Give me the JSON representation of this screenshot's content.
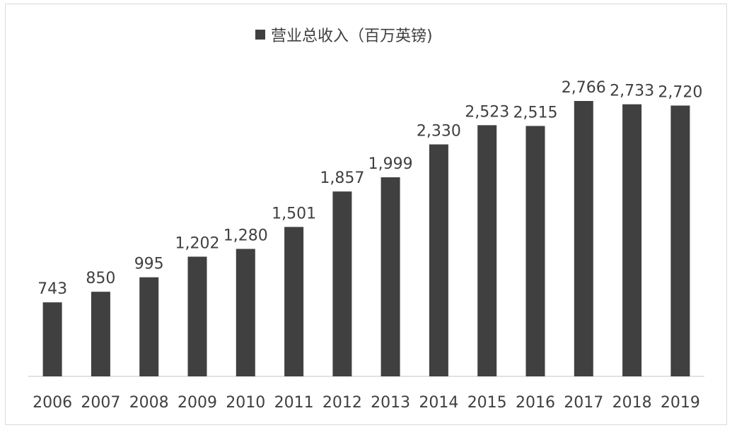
{
  "chart_data": {
    "type": "bar",
    "categories": [
      "2006",
      "2007",
      "2008",
      "2009",
      "2010",
      "2011",
      "2012",
      "2013",
      "2014",
      "2015",
      "2016",
      "2017",
      "2018",
      "2019"
    ],
    "series": [
      {
        "name": "营业总收入（百万英镑)",
        "values": [
          743,
          850,
          995,
          1202,
          1280,
          1501,
          1857,
          1999,
          2330,
          2523,
          2515,
          2766,
          2733,
          2720
        ],
        "value_labels": [
          "743",
          "850",
          "995",
          "1,202",
          "1,280",
          "1,501",
          "1,857",
          "1,999",
          "2,330",
          "2,523",
          "2,515",
          "2,766",
          "2,733",
          "2,720"
        ]
      }
    ],
    "ylim": [
      0,
      2766
    ],
    "grid": false,
    "legend_position": "top-center",
    "bar_color": "#404040",
    "axis_color": "#d9d9d9",
    "text_color": "#404040"
  }
}
